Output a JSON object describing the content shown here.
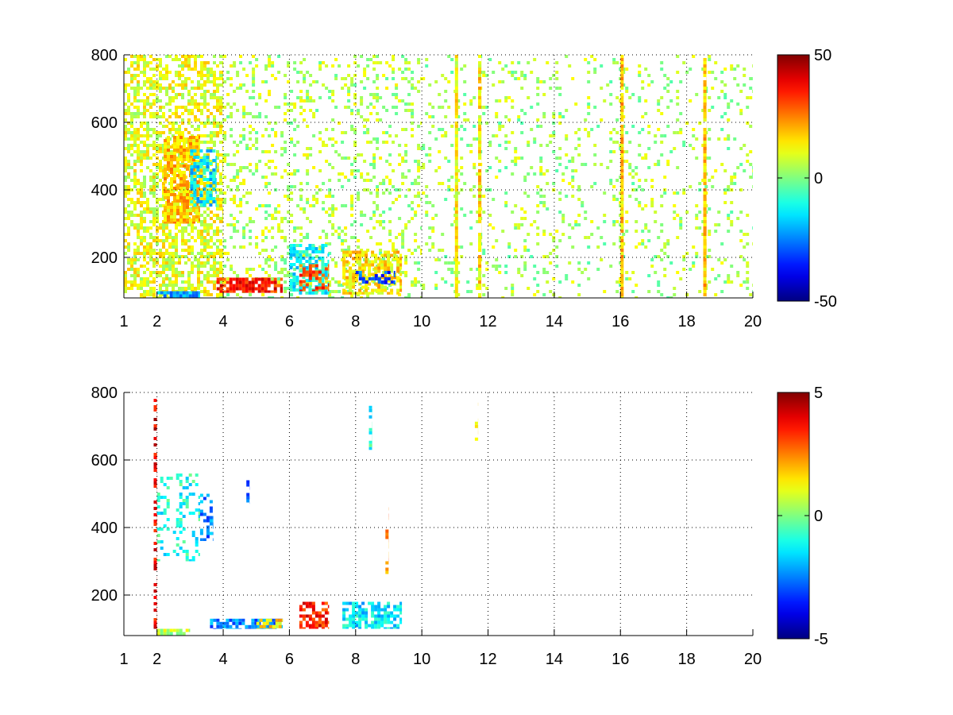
{
  "chart_data": [
    {
      "type": "heatmap",
      "title": "",
      "xlabel": "",
      "ylabel": "",
      "xlim": [
        1,
        20
      ],
      "ylim": [
        80,
        800
      ],
      "x_ticks": [
        1,
        2,
        4,
        6,
        8,
        10,
        12,
        14,
        16,
        18,
        20
      ],
      "x_tick_labels": [
        "1",
        "2",
        "4",
        "6",
        "8",
        "10",
        "12",
        "14",
        "16",
        "18",
        "20"
      ],
      "y_ticks": [
        200,
        400,
        600,
        800
      ],
      "y_tick_labels": [
        "200",
        "400",
        "600",
        "800"
      ],
      "grid": true,
      "colormap": "jet",
      "colorbar": {
        "range": [
          -50,
          50
        ],
        "ticks": [
          50,
          0,
          -50
        ],
        "tick_labels": [
          "50",
          "0",
          "-50"
        ]
      },
      "features": [
        {
          "x": [
            1.0,
            4.0
          ],
          "y": [
            80,
            800
          ],
          "value": 10,
          "density": 0.55
        },
        {
          "x": [
            2.2,
            3.3
          ],
          "y": [
            300,
            560
          ],
          "value": 18,
          "density": 0.8
        },
        {
          "x": [
            3.0,
            3.8
          ],
          "y": [
            350,
            520
          ],
          "value": -15,
          "density": 0.6
        },
        {
          "x": [
            4.0,
            10.0
          ],
          "y": [
            80,
            800
          ],
          "value": 5,
          "density": 0.2
        },
        {
          "x": [
            10.0,
            20.0
          ],
          "y": [
            80,
            800
          ],
          "value": 4,
          "density": 0.12
        },
        {
          "x": [
            2.0,
            3.3
          ],
          "y": [
            80,
            100
          ],
          "value": -20,
          "density": 0.9
        },
        {
          "x": [
            3.8,
            5.8
          ],
          "y": [
            95,
            140
          ],
          "value": 35,
          "density": 0.85
        },
        {
          "x": [
            6.0,
            7.2
          ],
          "y": [
            90,
            240
          ],
          "value": -12,
          "density": 0.65
        },
        {
          "x": [
            6.3,
            7.2
          ],
          "y": [
            100,
            180
          ],
          "value": 30,
          "density": 0.5
        },
        {
          "x": [
            7.6,
            9.4
          ],
          "y": [
            90,
            220
          ],
          "value": 15,
          "density": 0.65
        },
        {
          "x": [
            8.0,
            9.2
          ],
          "y": [
            120,
            160
          ],
          "value": -30,
          "density": 0.5
        },
        {
          "x": [
            11.0,
            11.1
          ],
          "y": [
            80,
            800
          ],
          "value": 12,
          "density": 0.95
        },
        {
          "x": [
            11.7,
            11.8
          ],
          "y": [
            80,
            800
          ],
          "value": 15,
          "density": 0.9
        },
        {
          "x": [
            16.0,
            16.1
          ],
          "y": [
            80,
            800
          ],
          "value": 18,
          "density": 0.9
        },
        {
          "x": [
            18.5,
            18.6
          ],
          "y": [
            80,
            800
          ],
          "value": 18,
          "density": 0.9
        }
      ]
    },
    {
      "type": "heatmap",
      "title": "",
      "xlabel": "",
      "ylabel": "",
      "xlim": [
        1,
        20
      ],
      "ylim": [
        80,
        800
      ],
      "x_ticks": [
        1,
        2,
        4,
        6,
        8,
        10,
        12,
        14,
        16,
        18,
        20
      ],
      "x_tick_labels": [
        "1",
        "2",
        "4",
        "6",
        "8",
        "10",
        "12",
        "14",
        "16",
        "18",
        "20"
      ],
      "y_ticks": [
        200,
        400,
        600,
        800
      ],
      "y_tick_labels": [
        "200",
        "400",
        "600",
        "800"
      ],
      "grid": true,
      "colormap": "jet",
      "colorbar": {
        "range": [
          -5,
          5
        ],
        "ticks": [
          5,
          0,
          -5
        ],
        "tick_labels": [
          "5",
          "0",
          "-5"
        ]
      },
      "features": [
        {
          "x": [
            1.9,
            2.0
          ],
          "y": [
            100,
            800
          ],
          "value": 4,
          "density": 0.5
        },
        {
          "x": [
            2.0,
            3.3
          ],
          "y": [
            300,
            560
          ],
          "value": -1,
          "density": 0.25
        },
        {
          "x": [
            3.3,
            3.7
          ],
          "y": [
            360,
            500
          ],
          "value": -2.5,
          "density": 0.4
        },
        {
          "x": [
            2.0,
            3.0
          ],
          "y": [
            80,
            100
          ],
          "value": 0.5,
          "density": 0.7
        },
        {
          "x": [
            3.6,
            5.8
          ],
          "y": [
            100,
            130
          ],
          "value": -2.5,
          "density": 0.8
        },
        {
          "x": [
            5.0,
            5.8
          ],
          "y": [
            100,
            130
          ],
          "value": 1.5,
          "density": 0.6
        },
        {
          "x": [
            6.3,
            7.2
          ],
          "y": [
            100,
            180
          ],
          "value": 3.5,
          "density": 0.6
        },
        {
          "x": [
            7.6,
            9.4
          ],
          "y": [
            100,
            180
          ],
          "value": -1.5,
          "density": 0.7
        },
        {
          "x": [
            8.4,
            8.5
          ],
          "y": [
            630,
            770
          ],
          "value": -1,
          "density": 0.5
        },
        {
          "x": [
            8.9,
            9.0
          ],
          "y": [
            260,
            460
          ],
          "value": 2.5,
          "density": 0.4
        },
        {
          "x": [
            4.7,
            4.8
          ],
          "y": [
            470,
            540
          ],
          "value": -3,
          "density": 0.6
        },
        {
          "x": [
            11.6,
            11.7
          ],
          "y": [
            620,
            770
          ],
          "value": 1,
          "density": 0.3
        }
      ]
    }
  ]
}
